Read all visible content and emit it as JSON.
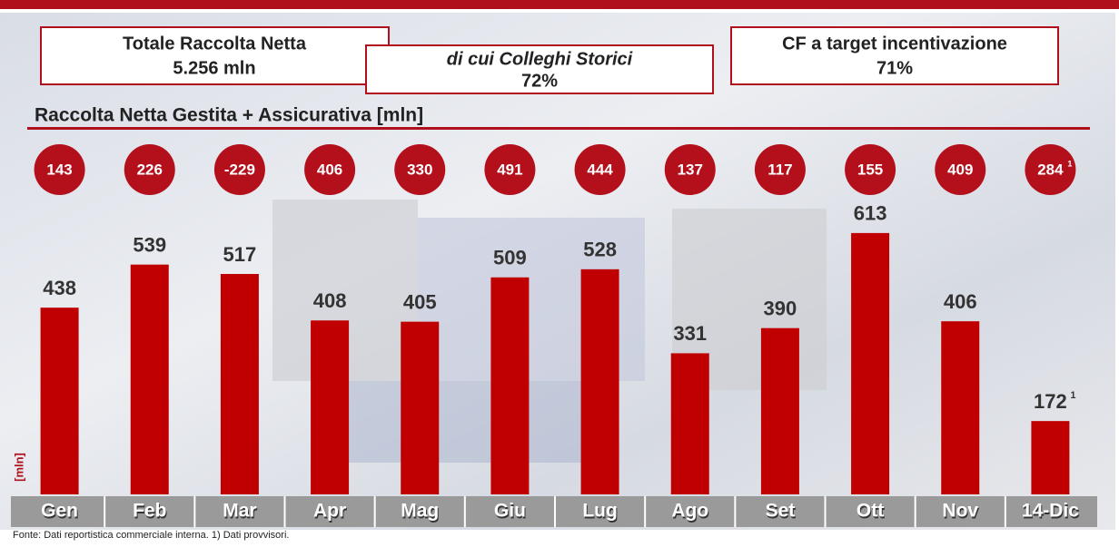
{
  "boxes": {
    "total": {
      "label": "Totale Raccolta Netta",
      "value": "5.256 mln"
    },
    "historic": {
      "label": "di cui Colleghi Storici",
      "value": "72%"
    },
    "target": {
      "label": "CF a target incentivazione",
      "value": "71%"
    }
  },
  "chart_data": {
    "type": "bar",
    "title": "Raccolta Netta Gestita + Assicurativa [mln]",
    "y_label": "[mln]",
    "categories": [
      "Gen",
      "Feb",
      "Mar",
      "Apr",
      "Mag",
      "Giu",
      "Lug",
      "Ago",
      "Set",
      "Ott",
      "Nov",
      "14-Dic"
    ],
    "values": [
      438,
      539,
      517,
      408,
      405,
      509,
      528,
      331,
      390,
      613,
      406,
      172
    ],
    "notes": [
      null,
      null,
      null,
      null,
      null,
      null,
      null,
      null,
      null,
      null,
      null,
      "1"
    ],
    "color": "#c00000",
    "circle_values": [
      143,
      226,
      -229,
      406,
      330,
      491,
      444,
      137,
      117,
      155,
      409,
      284
    ],
    "circle_notes": [
      null,
      null,
      null,
      null,
      null,
      null,
      null,
      null,
      null,
      null,
      null,
      "1"
    ],
    "circle_color": "#b3101c",
    "footnote": "Fonte: Dati reportistica commerciale interna. 1) Dati provvisori."
  }
}
